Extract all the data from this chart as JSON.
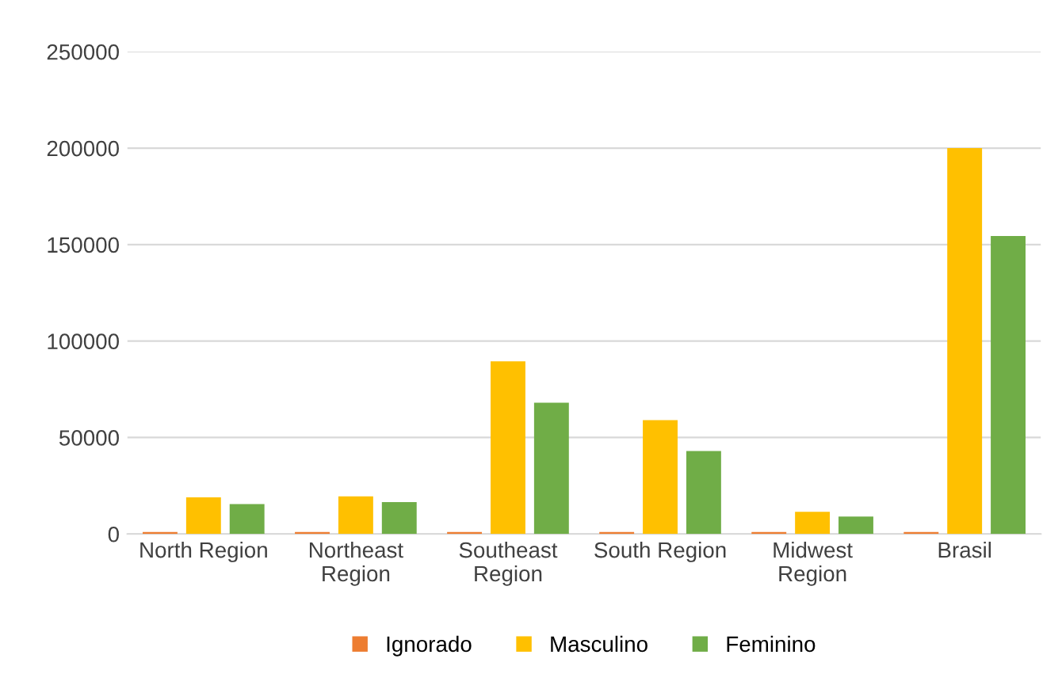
{
  "chart_data": {
    "type": "bar",
    "categories": [
      "North Region",
      "Northeast\nRegion",
      "Southeast\nRegion",
      "South Region",
      "Midwest\nRegion",
      "Brasil"
    ],
    "series": [
      {
        "name": "Ignorado",
        "color": "#ed7d31",
        "values": [
          1000,
          1000,
          1000,
          1000,
          1000,
          1000
        ]
      },
      {
        "name": "Masculino",
        "color": "#ffc000",
        "values": [
          19000,
          19500,
          89500,
          59000,
          11500,
          200000
        ]
      },
      {
        "name": "Feminino",
        "color": "#70ad47",
        "values": [
          15500,
          16500,
          68000,
          43000,
          9000,
          154500
        ]
      }
    ],
    "ylim": [
      0,
      250000
    ],
    "yticks": [
      0,
      50000,
      100000,
      150000,
      200000,
      250000
    ],
    "grid": "y",
    "legend": "bottom"
  }
}
